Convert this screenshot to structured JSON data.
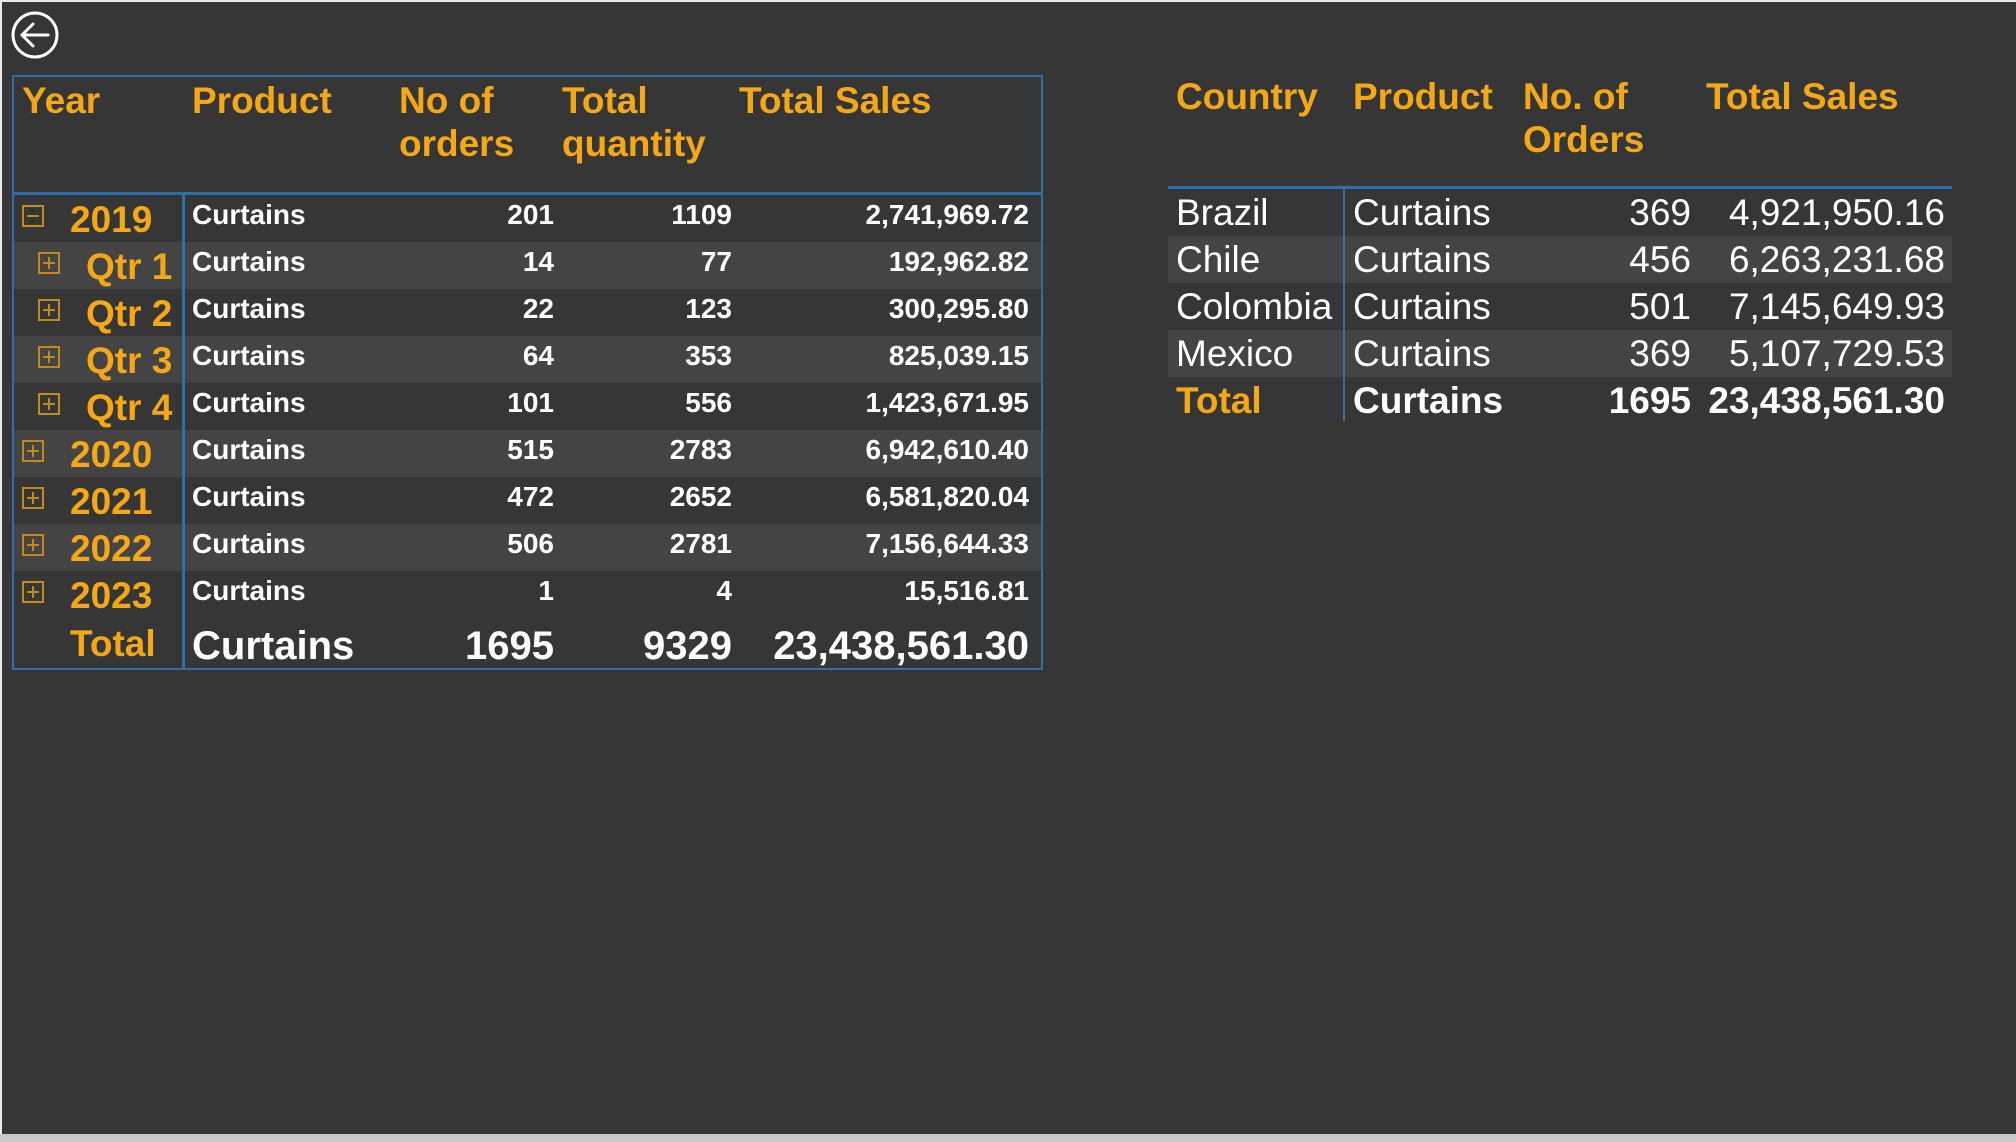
{
  "matrix": {
    "headers": {
      "year": "Year",
      "product": "Product",
      "orders": "No of orders",
      "quantity": "Total quantity",
      "sales": "Total Sales"
    },
    "rows": [
      {
        "label": "2019",
        "toggle": "minus",
        "product": "Curtains",
        "orders": "201",
        "quantity": "1109",
        "sales": "2,741,969.72"
      },
      {
        "label": "Qtr 1",
        "toggle": "plus",
        "product": "Curtains",
        "orders": "14",
        "quantity": "77",
        "sales": "192,962.82"
      },
      {
        "label": "Qtr 2",
        "toggle": "plus",
        "product": "Curtains",
        "orders": "22",
        "quantity": "123",
        "sales": "300,295.80"
      },
      {
        "label": "Qtr 3",
        "toggle": "plus",
        "product": "Curtains",
        "orders": "64",
        "quantity": "353",
        "sales": "825,039.15"
      },
      {
        "label": "Qtr 4",
        "toggle": "plus",
        "product": "Curtains",
        "orders": "101",
        "quantity": "556",
        "sales": "1,423,671.95"
      },
      {
        "label": "2020",
        "toggle": "plus",
        "product": "Curtains",
        "orders": "515",
        "quantity": "2783",
        "sales": "6,942,610.40"
      },
      {
        "label": "2021",
        "toggle": "plus",
        "product": "Curtains",
        "orders": "472",
        "quantity": "2652",
        "sales": "6,581,820.04"
      },
      {
        "label": "2022",
        "toggle": "plus",
        "product": "Curtains",
        "orders": "506",
        "quantity": "2781",
        "sales": "7,156,644.33"
      },
      {
        "label": "2023",
        "toggle": "plus",
        "product": "Curtains",
        "orders": "1",
        "quantity": "4",
        "sales": "15,516.81"
      }
    ],
    "total": {
      "label": "Total",
      "product": "Curtains",
      "orders": "1695",
      "quantity": "9329",
      "sales": "23,438,561.30"
    }
  },
  "country_table": {
    "headers": {
      "country": "Country",
      "product": "Product",
      "orders": "No. of Orders",
      "sales": "Total Sales"
    },
    "rows": [
      {
        "country": "Brazil",
        "product": "Curtains",
        "orders": "369",
        "sales": "4,921,950.16"
      },
      {
        "country": "Chile",
        "product": "Curtains",
        "orders": "456",
        "sales": "6,263,231.68"
      },
      {
        "country": "Colombia",
        "product": "Curtains",
        "orders": "501",
        "sales": "7,145,649.93"
      },
      {
        "country": "Mexico",
        "product": "Curtains",
        "orders": "369",
        "sales": "5,107,729.53"
      }
    ],
    "total": {
      "label": "Total",
      "product": "Curtains",
      "orders": "1695",
      "sales": "23,438,561.30"
    }
  },
  "colors": {
    "background": "#363636",
    "accent": "#f5a817",
    "border": "#2e6fa8",
    "band": "#444444",
    "text": "#ffffff"
  },
  "icons": {
    "back": "back-arrow-icon"
  }
}
